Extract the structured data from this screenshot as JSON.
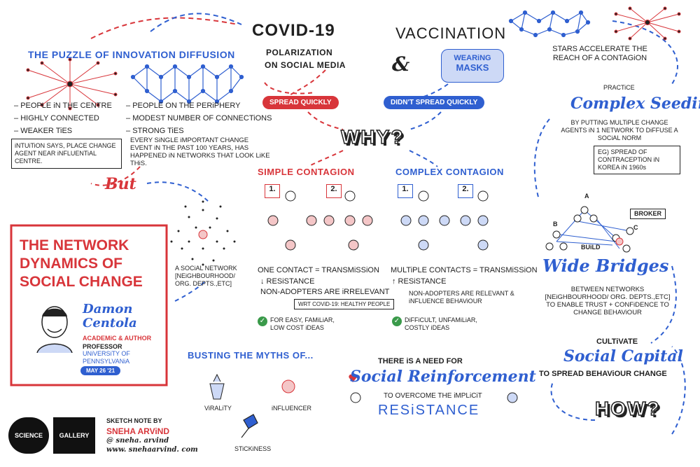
{
  "colors": {
    "blue": "#2f5fd0",
    "red": "#d8353a",
    "ink": "#1f1f1f",
    "light_blue": "#cdd9f6",
    "light_red": "#f4c6c7"
  },
  "left": {
    "puzzle_title": "THE PUZZLE OF iNNOVATION DiFFUSiON",
    "centre_bullets": [
      "PEOPLE iN THE CENTRE",
      "HIGHLY CONNECTED",
      "WEAKER TiES"
    ],
    "periphery_bullets": [
      "PEOPLE ON THE PERiPHERY",
      "MODEST NUMBER OF CONNECTiONS",
      "STRONG TiES"
    ],
    "intuition_note": "iNTUiTiON SAYS, PLACE CHANGE AGENT NEAR iNFLUENTiAL CENTRE.",
    "quote": "EVERY SiNGLE iMPORTANT CHANGE EVENT iN THE PAST 100 YEARS, HAS HAPPENED iN NETWORKS THAT LOOK LiKE THiS.",
    "but": "But",
    "social_network": "A SOCiAL NETWORK [NEiGHBOURHOOD/ ORG. DEPTS.,ETC]",
    "main_title": "THE NETWORK DYNAMICS OF SOCIAL CHANGE",
    "speaker_name": "Damon Centola",
    "speaker_role": "ACADEMiC & AUTHOR",
    "professor": "PROFESSOR",
    "university": "UNiVERSiTY OF PENNSYLVANiA",
    "date": "MAY 26 '21"
  },
  "middle": {
    "covid": "COVID-19",
    "polarization": "POLARiZATiON",
    "social_media": "ON SOCiAL MEDiA",
    "spread_quickly": "SPREAD QUiCKLY",
    "vaccination": "VACCINATION",
    "wearing": "WEARiNG",
    "masks": "MASKS",
    "didnt_spread": "DiDN'T SPREAD QUiCKLY",
    "why": "WHY?",
    "simple_title": "SiMPLE CONTAGiON",
    "complex_title": "COMPLEX CONTAGiON",
    "step1": "1.",
    "step2": "2.",
    "simple_lines": [
      "ONE CONTACT = TRANSMiSSiON",
      "↓ RESiSTANCE",
      "NON-ADOPTERS ARE iRRELEVANT"
    ],
    "covid_note": "WRT COViD-19: HEALTHY PEOPLE",
    "simple_ok": "FOR EASY, FAMiLiAR, LOW COST iDEAS",
    "complex_lines": [
      "MULTiPLE CONTACTS = TRANSMiSSiON",
      "↑ RESiSTANCE"
    ],
    "complex_thumb": "NON-ADOPTERS ARE RELEVANT & iNFLUENCE BEHAViOUR",
    "complex_ok": "DiFFiCULT, UNFAMiLiAR, COSTLY iDEAS",
    "myths_title": "BUSTiNG THE MYTHS OF...",
    "myths": [
      "ViRALiTY",
      "iNFLUENCER",
      "STiCKiNESS"
    ],
    "need_for": "THERE iS A NEED FOR",
    "social_reinforcement": "Social Reinforcement",
    "overcome": "TO OVERCOME THE iMPLiCiT",
    "resistance": "RESiSTANCE"
  },
  "right": {
    "stars": "STARS ACCELERATE THE REACH OF A CONTAGiON",
    "practice": "PRACTiCE",
    "complex_seeding": "Complex Seeding",
    "seeding_desc": "BY PUTTiNG MULTiPLE CHANGE AGENTS iN 1 NETWORK TO DiFFUSE A SOCiAL NORM",
    "eg_note": "EG) SPREAD OF CONTRACEPTiON iN KOREA iN 1960s",
    "broker": "BROKER",
    "node_a": "A",
    "node_b": "B",
    "node_c": "C",
    "build": "BUiLD",
    "wide_bridges": "Wide Bridges",
    "bridges_desc": "BETWEEN NETWORKS [NEiGHBOURHOOD/ ORG. DEPTS.,ETC] TO ENABLE TRUST + CONFiDENCE TO CHANGE BEHAViOUR",
    "cultivate": "CULTiVATE",
    "social_capital": "Social Capital",
    "capital_desc": "TO SPREAD BEHAViOUR CHANGE",
    "how": "HOW?"
  },
  "footer": {
    "science": "SCIENCE",
    "gallery": "GALLERY",
    "sketchnote_by": "SKETCH NOTE BY",
    "author": "SNEHA ARViND",
    "handle": "@ sneha. arvind",
    "website": "www. snehaarvind. com"
  }
}
